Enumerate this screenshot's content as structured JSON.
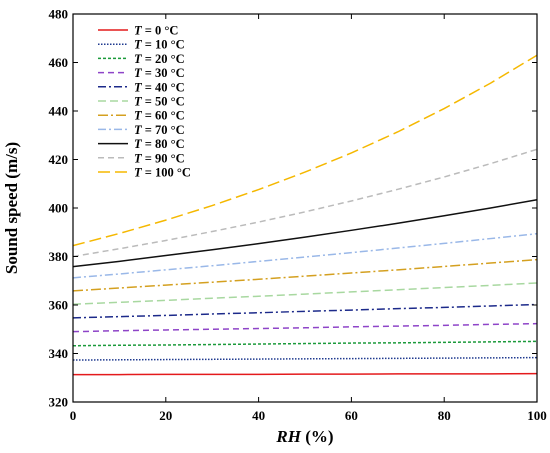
{
  "chart_data": {
    "type": "line",
    "xlabel": "RH (%)",
    "ylabel": "Sound speed (m/s)",
    "xlim": [
      0,
      100
    ],
    "ylim": [
      320,
      480
    ],
    "xticks": [
      0,
      20,
      40,
      60,
      80,
      100
    ],
    "yticks": [
      320,
      340,
      360,
      380,
      400,
      420,
      440,
      460,
      480
    ],
    "legend_position": "top-left",
    "grid": false,
    "x": [
      0,
      10,
      20,
      30,
      40,
      50,
      60,
      70,
      80,
      90,
      100
    ],
    "series": [
      {
        "name": "T = 0 °C",
        "label_var": "T",
        "label_rest": " =    0 °C",
        "color": "#e41a1c",
        "dash": "",
        "values": [
          331.3,
          331.3,
          331.4,
          331.4,
          331.4,
          331.5,
          331.5,
          331.6,
          331.6,
          331.6,
          331.7
        ]
      },
      {
        "name": "T = 10 °C",
        "label_var": "T",
        "label_rest": " =  10 °C",
        "color": "#1f3a8f",
        "dash": "1.5,1.5",
        "values": [
          337.3,
          337.4,
          337.5,
          337.6,
          337.7,
          337.8,
          337.9,
          338.0,
          338.1,
          338.2,
          338.3
        ]
      },
      {
        "name": "T = 20 °C",
        "label_var": "T",
        "label_rest": " =  20 °C",
        "color": "#1a9a3a",
        "dash": "3,2",
        "values": [
          343.2,
          343.4,
          343.5,
          343.7,
          343.9,
          344.1,
          344.3,
          344.4,
          344.6,
          344.8,
          345.0
        ]
      },
      {
        "name": "T = 30 °C",
        "label_var": "T",
        "label_rest": " =  30 °C",
        "color": "#8e44c8",
        "dash": "6,4",
        "values": [
          349.0,
          349.4,
          349.7,
          350.0,
          350.3,
          350.6,
          351.0,
          351.3,
          351.6,
          352.0,
          352.3
        ]
      },
      {
        "name": "T = 40 °C",
        "label_var": "T",
        "label_rest": " =  40 °C",
        "color": "#1c2a8a",
        "dash": "8,3,2,3",
        "values": [
          354.7,
          355.2,
          355.7,
          356.3,
          356.8,
          357.4,
          357.9,
          358.5,
          359.0,
          359.6,
          360.2
        ]
      },
      {
        "name": "T = 50 °C",
        "label_var": "T",
        "label_rest": " =  50 °C",
        "color": "#a8d8a0",
        "dash": "8,4",
        "values": [
          360.3,
          361.1,
          361.9,
          362.8,
          363.6,
          364.5,
          365.4,
          366.3,
          367.2,
          368.1,
          369.1
        ]
      },
      {
        "name": "T = 60 °C",
        "label_var": "T",
        "label_rest": " =  60 °C",
        "color": "#d4a020",
        "dash": "10,3,2,3",
        "values": [
          365.8,
          367.0,
          368.2,
          369.4,
          370.6,
          371.9,
          373.2,
          374.5,
          375.9,
          377.3,
          378.7
        ]
      },
      {
        "name": "T = 70 °C",
        "label_var": "T",
        "label_rest": " =  70 °C",
        "color": "#9ab8e8",
        "dash": "8,3,2,3",
        "values": [
          371.2,
          372.8,
          374.5,
          376.2,
          378.0,
          379.8,
          381.6,
          383.5,
          385.4,
          387.4,
          389.4
        ]
      },
      {
        "name": "T = 80 °C",
        "label_var": "T",
        "label_rest": " =  80 °C",
        "color": "#111111",
        "dash": "",
        "values": [
          375.8,
          378.0,
          380.4,
          382.8,
          385.3,
          388.0,
          390.8,
          393.7,
          396.8,
          400.0,
          403.4
        ]
      },
      {
        "name": "T = 90 °C",
        "label_var": "T",
        "label_rest": " =  90 °C",
        "color": "#bbbbbb",
        "dash": "6,4",
        "values": [
          380.0,
          383.2,
          386.6,
          390.3,
          394.2,
          398.4,
          402.9,
          407.7,
          412.8,
          418.3,
          424.2
        ]
      },
      {
        "name": "T = 100 °C",
        "label_var": "T",
        "label_rest": " =  100 °C",
        "color": "#f5b800",
        "dash": "12,5",
        "values": [
          384.5,
          389.5,
          395.0,
          401.0,
          407.6,
          414.8,
          422.7,
          431.4,
          441.0,
          451.5,
          463.0
        ]
      }
    ]
  }
}
